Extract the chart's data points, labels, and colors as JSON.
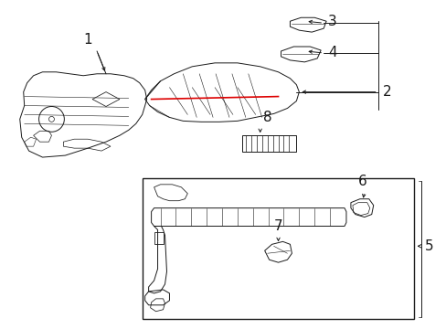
{
  "bg_color": "#ffffff",
  "line_color": "#1a1a1a",
  "red_color": "#dd0000",
  "figsize": [
    4.89,
    3.6
  ],
  "dpi": 100,
  "label_fontsize": 11
}
